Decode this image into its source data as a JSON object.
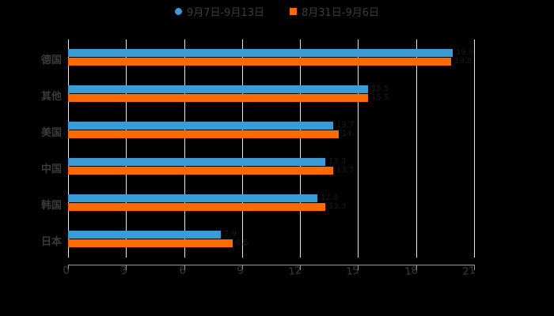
{
  "legend": [
    {
      "label": "9月7日-9月13日",
      "color": "#3a9bd5",
      "marker": "circle"
    },
    {
      "label": "8月31日-9月6日",
      "color": "#ff6a00",
      "marker": "square"
    }
  ],
  "chart_data": {
    "type": "bar",
    "orientation": "horizontal",
    "title": "",
    "xlabel": "",
    "ylabel": "",
    "categories": [
      "德国",
      "其他",
      "美国",
      "中国",
      "韩国",
      "日本"
    ],
    "series": [
      {
        "name": "9月7日-9月13日",
        "color": "#3a9bd5",
        "values": [
          19.9,
          15.5,
          13.7,
          13.3,
          12.9,
          7.9
        ]
      },
      {
        "name": "8月31日-9月6日",
        "color": "#ff6a00",
        "values": [
          19.8,
          15.5,
          14.0,
          13.7,
          13.3,
          8.5
        ]
      }
    ],
    "xlim": [
      0,
      21
    ],
    "xticks": [
      "0",
      "3",
      "6",
      "9",
      "12",
      "15",
      "18",
      "21"
    ],
    "grid": true,
    "legend_position": "top"
  }
}
